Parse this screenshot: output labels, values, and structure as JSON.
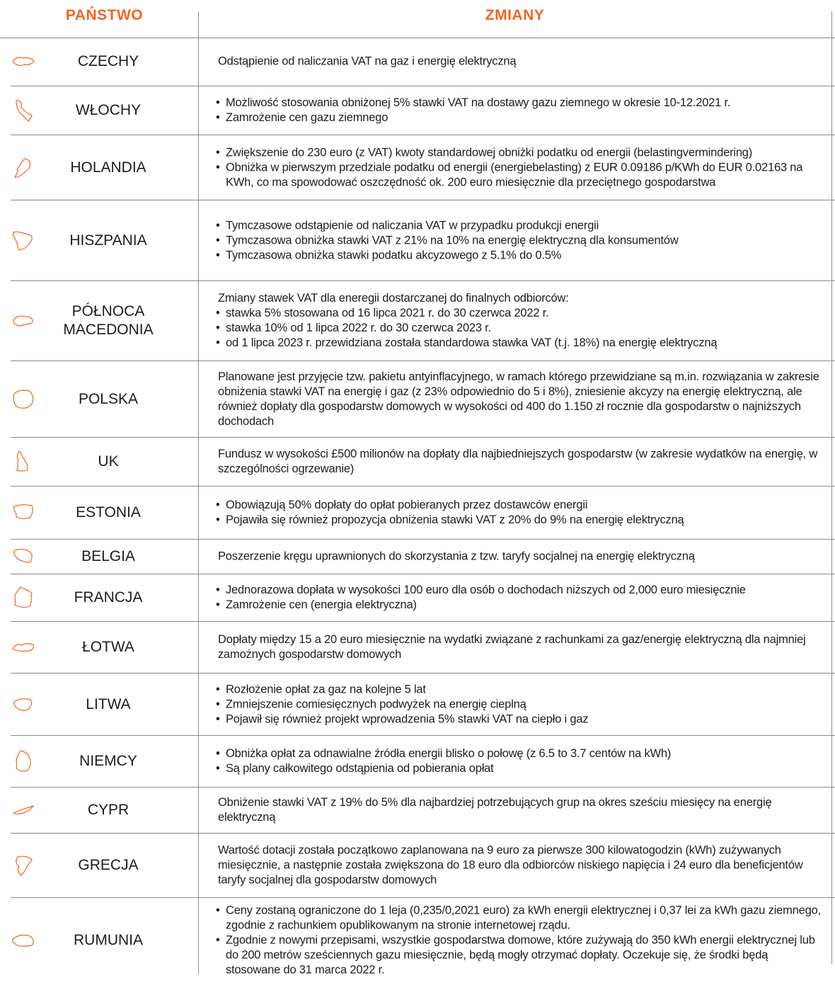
{
  "header": {
    "country": "PAŃSTWO",
    "changes": "ZMIANY"
  },
  "colors": {
    "accent": "#f26522",
    "rule": "#8a8a8a"
  },
  "rows": [
    {
      "country": "CZECHY",
      "icon": "czechia-map-icon",
      "text": "Odstąpienie od naliczania VAT na gaz i energię elektryczną"
    },
    {
      "country": "WŁOCHY",
      "icon": "italy-map-icon",
      "bullets": [
        "Możliwość stosowania  obniżonej  5%  stawki VAT na dostawy gazu ziemnego w okresie 10-12.2021 r.",
        "Zamrożenie cen gazu ziemnego"
      ]
    },
    {
      "country": "HOLANDIA",
      "icon": "netherlands-map-icon",
      "bullets": [
        "Zwiększenie do 230 euro (z VAT) kwoty standardowej obniżki podatku od energii (belastingvermindering)",
        "Obniżka w pierwszym przedziale podatku od energii (energiebelasting) z EUR 0.09186 p/KWh do EUR 0.02163 na KWh, co ma spowodować oszczędność ok. 200 euro miesięcznie dla przeciętnego gospodarstwa"
      ]
    },
    {
      "country": "HISZPANIA",
      "icon": "spain-map-icon",
      "bullets": [
        "Tymczasowe odstąpienie od naliczania  VAT w przypadku produkcji  energii",
        "Tymczasowa obniżka stawki VAT z 21% na 10% na energię elektryczną dla konsumentów",
        "Tymczasowa obniżka stawki podatku akcyzowego z 5.1% do 0.5%"
      ]
    },
    {
      "country": "PÓŁNOCA MACEDONIA",
      "icon": "north-macedonia-map-icon",
      "intro": "Zmiany stawek VAT dla eneregii dostarczanej do finalnych odbiorców:",
      "bullets": [
        "stawka  5% stosowana od 16 lipca 2021 r. do 30 czerwca 2022 r.",
        "stawka 10% od 1 lipca 2022 r. do 30 czerwca 2023 r.",
        "od 1 lipca 2023 r. przewidziana została standardowa stawka VAT  (t.j. 18%) na energię elektryczną"
      ]
    },
    {
      "country": "POLSKA",
      "icon": "poland-map-icon",
      "text": "Planowane jest przyjęcie tzw. pakietu antyinflacyjnego, w ramach którego przewidziane są m.in. rozwiązania w zakresie obniżenia stawki VAT na energię i gaz (z 23% odpowiednio do 5 i 8%), zniesienie akcyzy na energię elektryczną, ale również dopłaty dla gospodarstw domowych w wysokości od 400 do 1.150 zł rocznie dla gospodarstw o najniższych dochodach"
    },
    {
      "country": "UK",
      "icon": "uk-map-icon",
      "text": "Fundusz w wysokości £500 milionów na dopłaty dla najbiedniejszych gospodarstw (w zakresie wydatków na energię, w szczególności ogrzewanie)"
    },
    {
      "country": "ESTONIA",
      "icon": "estonia-map-icon",
      "bullets": [
        "Obowiązują 50% dopłaty do opłat pobieranych przez dostawców energii",
        "Pojawiła się również propozycja obniżenia stawki VAT z 20% do 9% na energię elektryczną"
      ]
    },
    {
      "country": "BELGIA",
      "icon": "belgium-map-icon",
      "text": "Poszerzenie kręgu uprawnionych do skorzystania z tzw. taryfy socjalnej na energię elektryczną"
    },
    {
      "country": "FRANCJA",
      "icon": "france-map-icon",
      "bullets": [
        "Jednorazowa dopłata w wysokości 100 euro dla osób o dochodach niższych od 2,000 euro miesięcznie",
        "Zamrożenie cen (energia elektryczna)"
      ]
    },
    {
      "country": "ŁOTWA",
      "icon": "latvia-map-icon",
      "text": "Dopłaty między 15 a 20 euro miesięcznie na wydatki związane z rachunkami za gaz/energię elektryczną dla najmniej zamożnych gospodarstw domowych"
    },
    {
      "country": "LITWA",
      "icon": "lithuania-map-icon",
      "bullets": [
        "Rozłożenie opłat za gaz na kolejne 5 lat",
        "Zmniejszenie comiesięcznych podwyżek na energię cieplną",
        "Pojawił się również projekt wprowadzenia 5% stawki VAT na ciepło i gaz"
      ]
    },
    {
      "country": "NIEMCY",
      "icon": "germany-map-icon",
      "bullets": [
        "Obniżka opłat za odnawialne źródła energii blisko o połowę (z 6.5 to 3.7 centów na kWh)",
        "Są plany całkowitego odstąpienia od pobierania opłat"
      ]
    },
    {
      "country": "CYPR",
      "icon": "cyprus-map-icon",
      "text": "Obniżenie stawki VAT z 19% do 5% dla najbardziej potrzebujących grup na okres sześciu miesięcy na energię elektryczną"
    },
    {
      "country": "GRECJA",
      "icon": "greece-map-icon",
      "text": "Wartość dotacji została początkowo zaplanowana na 9 euro za pierwsze 300 kilowatogodzin (kWh) zużywanych miesięcznie, a następnie została zwiększona do 18 euro dla odbiorców niskiego napięcia i 24 euro dla beneficjentów taryfy socjalnej dla gospodarstw domowych"
    },
    {
      "country": "RUMUNIA",
      "icon": "romania-map-icon",
      "bullets": [
        "Ceny zostaną ograniczone do 1 leja (0,235/0,2021 euro) za kWh energii elektrycznej i 0,37 lei za kWh gazu ziemnego, zgodnie z rachunkiem opublikowanym na stronie internetowej rządu.",
        "Zgodnie z nowymi przepisami, wszystkie gospodarstwa domowe, które zużywają do 350 kWh energii elektrycznej lub do 200 metrów sześciennych gazu miesięcznie, będą mogły otrzymać dopłaty. Oczekuje się, że środki będą stosowane do 31 marca 2022 r."
      ]
    }
  ]
}
